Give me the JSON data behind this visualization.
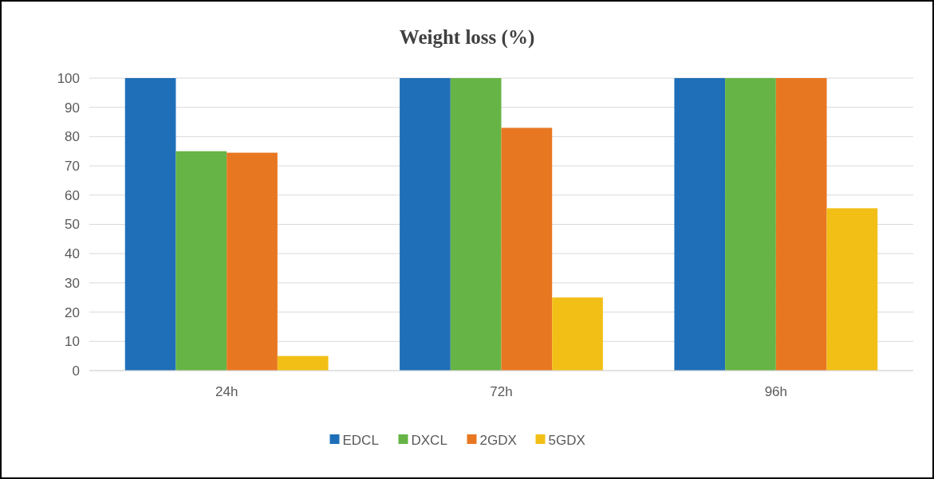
{
  "chart_data": {
    "type": "bar",
    "title": "Weight loss (%)",
    "categories": [
      "24h",
      "72h",
      "96h"
    ],
    "series": [
      {
        "name": "EDCL",
        "color": "#1f6fb8",
        "values": [
          100,
          100,
          100
        ]
      },
      {
        "name": "DXCL",
        "color": "#66b445",
        "values": [
          75,
          100,
          100
        ]
      },
      {
        "name": "2GDX",
        "color": "#e87722",
        "values": [
          74.5,
          83,
          100
        ]
      },
      {
        "name": "5GDX",
        "color": "#f2bf16",
        "values": [
          5,
          25,
          55.5
        ]
      }
    ],
    "ylim": [
      0,
      100
    ],
    "yticks": [
      0,
      10,
      20,
      30,
      40,
      50,
      60,
      70,
      80,
      90,
      100
    ],
    "grid": "y",
    "legend": "bottom"
  }
}
